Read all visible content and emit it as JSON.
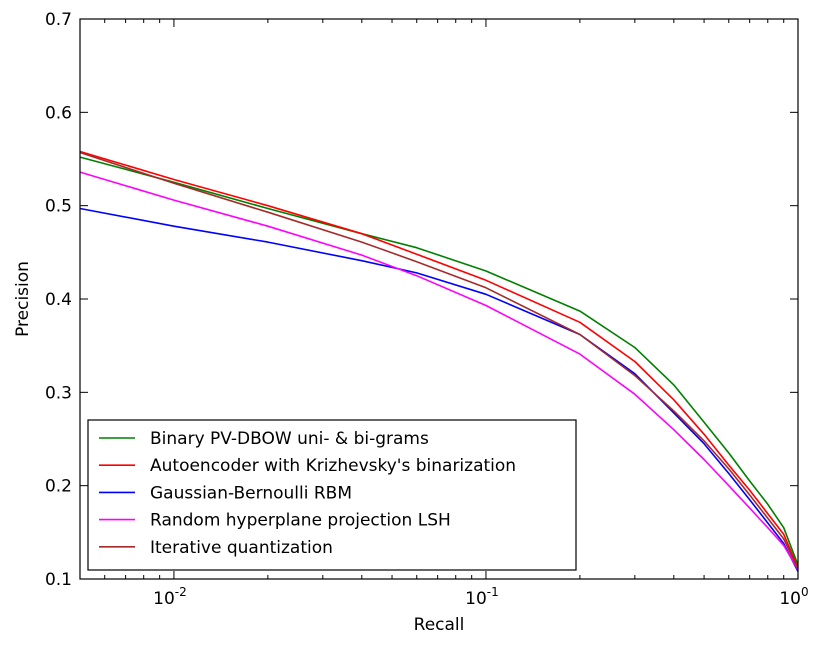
{
  "chart_data": {
    "type": "line",
    "title": "",
    "xlabel": "Recall",
    "ylabel": "Precision",
    "xscale": "log",
    "xlim": [
      0.005,
      1.0
    ],
    "ylim": [
      0.1,
      0.7
    ],
    "grid": false,
    "legend_position": "bottom-left",
    "yticks": [
      {
        "value": 0.1,
        "label": "0.1"
      },
      {
        "value": 0.2,
        "label": "0.2"
      },
      {
        "value": 0.3,
        "label": "0.3"
      },
      {
        "value": 0.4,
        "label": "0.4"
      },
      {
        "value": 0.5,
        "label": "0.5"
      },
      {
        "value": 0.6,
        "label": "0.6"
      },
      {
        "value": 0.7,
        "label": "0.7"
      }
    ],
    "xticks": [
      {
        "value": 0.01,
        "base": "10",
        "exp": "-2"
      },
      {
        "value": 0.1,
        "base": "10",
        "exp": "-1"
      },
      {
        "value": 1.0,
        "base": "10",
        "exp": "0"
      }
    ],
    "series": [
      {
        "name": "Binary PV-DBOW uni- & bi-grams",
        "color": "#008000",
        "x": [
          0.005,
          0.01,
          0.02,
          0.04,
          0.06,
          0.1,
          0.2,
          0.3,
          0.4,
          0.5,
          0.6,
          0.7,
          0.8,
          0.9,
          1.0
        ],
        "y": [
          0.552,
          0.525,
          0.497,
          0.47,
          0.455,
          0.43,
          0.387,
          0.348,
          0.308,
          0.268,
          0.235,
          0.205,
          0.18,
          0.155,
          0.115
        ]
      },
      {
        "name": "Autoencoder with Krizhevsky's binarization",
        "color": "#ff0000",
        "x": [
          0.005,
          0.01,
          0.02,
          0.04,
          0.06,
          0.1,
          0.2,
          0.3,
          0.4,
          0.5,
          0.6,
          0.7,
          0.8,
          0.9,
          1.0
        ],
        "y": [
          0.558,
          0.528,
          0.5,
          0.47,
          0.448,
          0.42,
          0.375,
          0.333,
          0.292,
          0.255,
          0.222,
          0.195,
          0.17,
          0.148,
          0.112
        ]
      },
      {
        "name": "Gaussian-Bernoulli RBM",
        "color": "#0000ff",
        "x": [
          0.005,
          0.01,
          0.02,
          0.04,
          0.06,
          0.1,
          0.2,
          0.3,
          0.4,
          0.5,
          0.6,
          0.7,
          0.8,
          0.9,
          1.0
        ],
        "y": [
          0.497,
          0.478,
          0.461,
          0.441,
          0.428,
          0.405,
          0.362,
          0.32,
          0.278,
          0.245,
          0.213,
          0.185,
          0.16,
          0.138,
          0.108
        ]
      },
      {
        "name": "Random hyperplane projection LSH",
        "color": "#ff00ff",
        "x": [
          0.005,
          0.01,
          0.02,
          0.04,
          0.06,
          0.1,
          0.2,
          0.3,
          0.4,
          0.5,
          0.6,
          0.7,
          0.8,
          0.9,
          1.0
        ],
        "y": [
          0.536,
          0.506,
          0.478,
          0.447,
          0.425,
          0.393,
          0.341,
          0.298,
          0.26,
          0.228,
          0.2,
          0.176,
          0.155,
          0.136,
          0.11
        ]
      },
      {
        "name": "Iterative quantization",
        "color": "#a52a2a",
        "x": [
          0.005,
          0.01,
          0.02,
          0.04,
          0.06,
          0.1,
          0.2,
          0.3,
          0.4,
          0.5,
          0.6,
          0.7,
          0.8,
          0.9,
          1.0
        ],
        "y": [
          0.557,
          0.524,
          0.493,
          0.461,
          0.44,
          0.412,
          0.362,
          0.318,
          0.28,
          0.248,
          0.218,
          0.19,
          0.165,
          0.143,
          0.111
        ]
      }
    ]
  }
}
